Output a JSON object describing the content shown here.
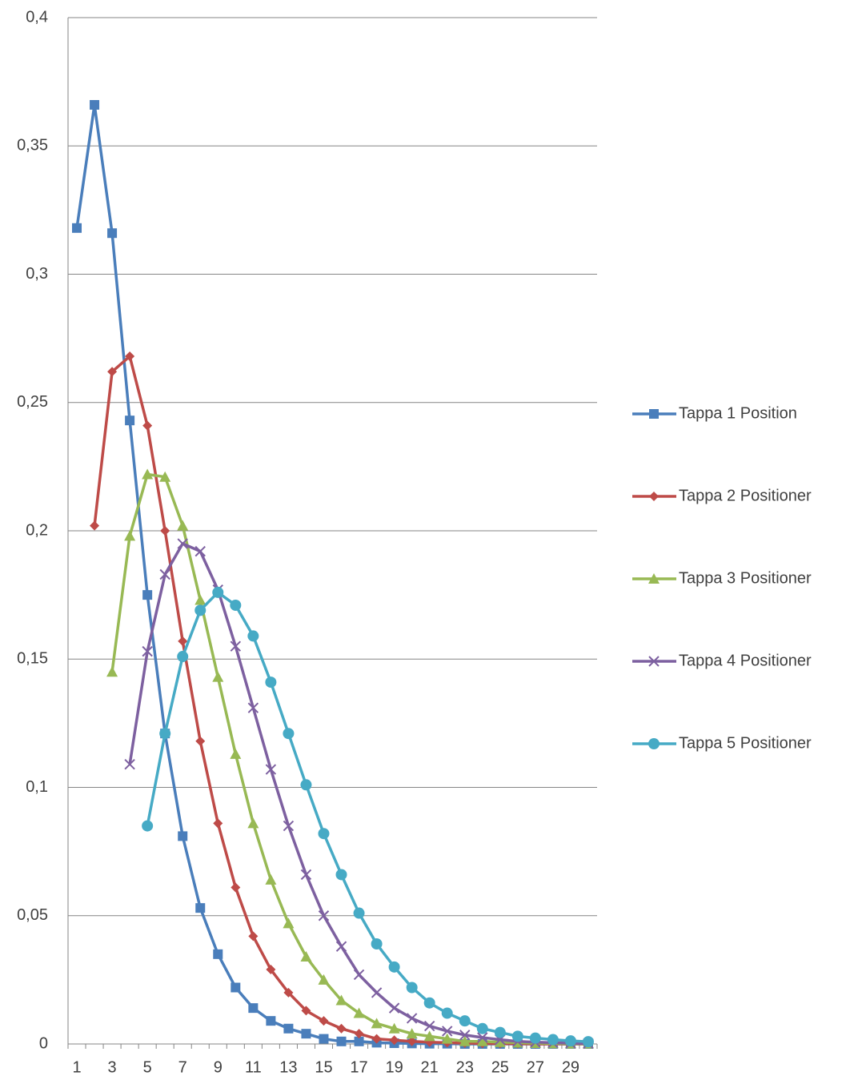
{
  "chart_data": {
    "type": "line",
    "categories": [
      1,
      null,
      3,
      null,
      5,
      null,
      7,
      null,
      9,
      null,
      11,
      null,
      13,
      null,
      15,
      null,
      17,
      null,
      19,
      null,
      21,
      null,
      23,
      null,
      25,
      null,
      27,
      null,
      29,
      null
    ],
    "ylim": [
      0,
      0.4
    ],
    "yticks": [
      0,
      {
        "value": 0.05,
        "label": "0,05"
      },
      {
        "value": 0.1,
        "label": "0,1"
      },
      {
        "value": 0.15,
        "label": "0,15"
      },
      {
        "value": 0.2,
        "label": "0,2"
      },
      {
        "value": 0.25,
        "label": "0,25"
      },
      {
        "value": 0.3,
        "label": "0,3"
      },
      {
        "value": 0.35,
        "label": "0,35"
      },
      {
        "value": 0.4,
        "label": "0,4"
      }
    ],
    "grid": true,
    "legend": "right",
    "series": [
      {
        "name": "Tappa 1 Position",
        "color": "#4a7ebb",
        "marker": "square",
        "values": [
          0.318,
          0.366,
          0.316,
          0.243,
          0.175,
          0.121,
          0.081,
          0.053,
          0.035,
          0.022,
          0.014,
          0.009,
          0.006,
          0.004,
          0.002,
          0.001,
          0.001,
          0.0005,
          0.0003,
          0.0002,
          0.0001,
          0.0001,
          0,
          0,
          0,
          0,
          0,
          0,
          0,
          0
        ]
      },
      {
        "name": "Tappa 2 Positioner",
        "color": "#be4b48",
        "marker": "diamond",
        "values": [
          null,
          0.202,
          0.262,
          0.268,
          0.241,
          0.2,
          0.157,
          0.118,
          0.086,
          0.061,
          0.042,
          0.029,
          0.02,
          0.013,
          0.009,
          0.006,
          0.004,
          0.002,
          0.0015,
          0.001,
          0.0007,
          0.0005,
          0.0003,
          0.0002,
          0.0001,
          0.0001,
          0,
          0,
          0,
          0
        ]
      },
      {
        "name": "Tappa 3 Positioner",
        "color": "#98b954",
        "marker": "triangle",
        "values": [
          null,
          null,
          0.145,
          0.198,
          0.222,
          0.221,
          0.202,
          0.173,
          0.143,
          0.113,
          0.086,
          0.064,
          0.047,
          0.034,
          0.025,
          0.017,
          0.012,
          0.008,
          0.006,
          0.004,
          0.003,
          0.002,
          0.001,
          0.001,
          0.0007,
          0.0005,
          0.0003,
          0.0002,
          0.0001,
          0.0001
        ]
      },
      {
        "name": "Tappa 4 Positioner",
        "color": "#7d60a0",
        "marker": "x",
        "values": [
          null,
          null,
          null,
          0.109,
          0.153,
          0.183,
          0.195,
          0.192,
          0.177,
          0.155,
          0.131,
          0.107,
          0.085,
          0.066,
          0.05,
          0.038,
          0.027,
          0.02,
          0.014,
          0.01,
          0.007,
          0.005,
          0.0035,
          0.0025,
          0.0017,
          0.001,
          0.0007,
          0.0005,
          0.0003,
          0.0002
        ]
      },
      {
        "name": "Tappa 5 Positioner",
        "color": "#46aac5",
        "marker": "circle",
        "values": [
          null,
          null,
          null,
          null,
          0.085,
          0.121,
          0.151,
          0.169,
          0.176,
          0.171,
          0.159,
          0.141,
          0.121,
          0.101,
          0.082,
          0.066,
          0.051,
          0.039,
          0.03,
          0.022,
          0.016,
          0.012,
          0.009,
          0.006,
          0.0045,
          0.003,
          0.0023,
          0.0017,
          0.0012,
          0.0009
        ]
      }
    ]
  }
}
